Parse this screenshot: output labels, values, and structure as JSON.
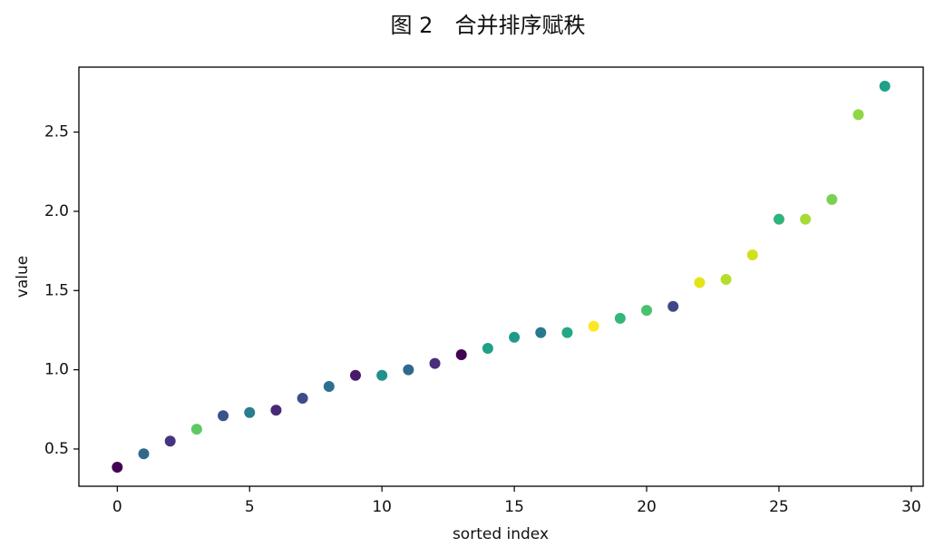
{
  "chart_data": {
    "type": "scatter",
    "title": "图 2　合并排序赋秩",
    "xlabel": "sorted index",
    "ylabel": "value",
    "x": [
      0,
      1,
      2,
      3,
      4,
      5,
      6,
      7,
      8,
      9,
      10,
      11,
      12,
      13,
      14,
      15,
      16,
      17,
      18,
      19,
      20,
      21,
      22,
      23,
      24,
      25,
      26,
      27,
      28,
      29
    ],
    "values": [
      0.385,
      0.47,
      0.55,
      0.625,
      0.71,
      0.73,
      0.745,
      0.82,
      0.895,
      0.965,
      0.965,
      1.0,
      1.04,
      1.095,
      1.135,
      1.205,
      1.235,
      1.235,
      1.275,
      1.325,
      1.375,
      1.4,
      1.55,
      1.57,
      1.725,
      1.95,
      1.95,
      2.075,
      2.61,
      2.79
    ],
    "colors": [
      "#440154",
      "#30678d",
      "#463480",
      "#5ec962",
      "#3b528b",
      "#287d8e",
      "#482878",
      "#3e4c8a",
      "#2d708e",
      "#481a6c",
      "#21918c",
      "#31688e",
      "#472d7b",
      "#440154",
      "#1fa088",
      "#1f9a8a",
      "#2a788e",
      "#22a884",
      "#fde725",
      "#35b779",
      "#4ac16d",
      "#3f4788",
      "#e5e419",
      "#b5de2b",
      "#d0e11c",
      "#2fb47c",
      "#a5db36",
      "#7ad151",
      "#8fd744",
      "#1fa187"
    ],
    "xlim": [
      -1.45,
      30.45
    ],
    "ylim": [
      0.265,
      2.91
    ],
    "xticks": [
      0,
      5,
      10,
      15,
      20,
      25,
      30
    ],
    "yticks": [
      0.5,
      {
        "value": 1,
        "label": "1.0"
      },
      1.5,
      {
        "value": 2,
        "label": "2.0"
      },
      2.5
    ]
  }
}
